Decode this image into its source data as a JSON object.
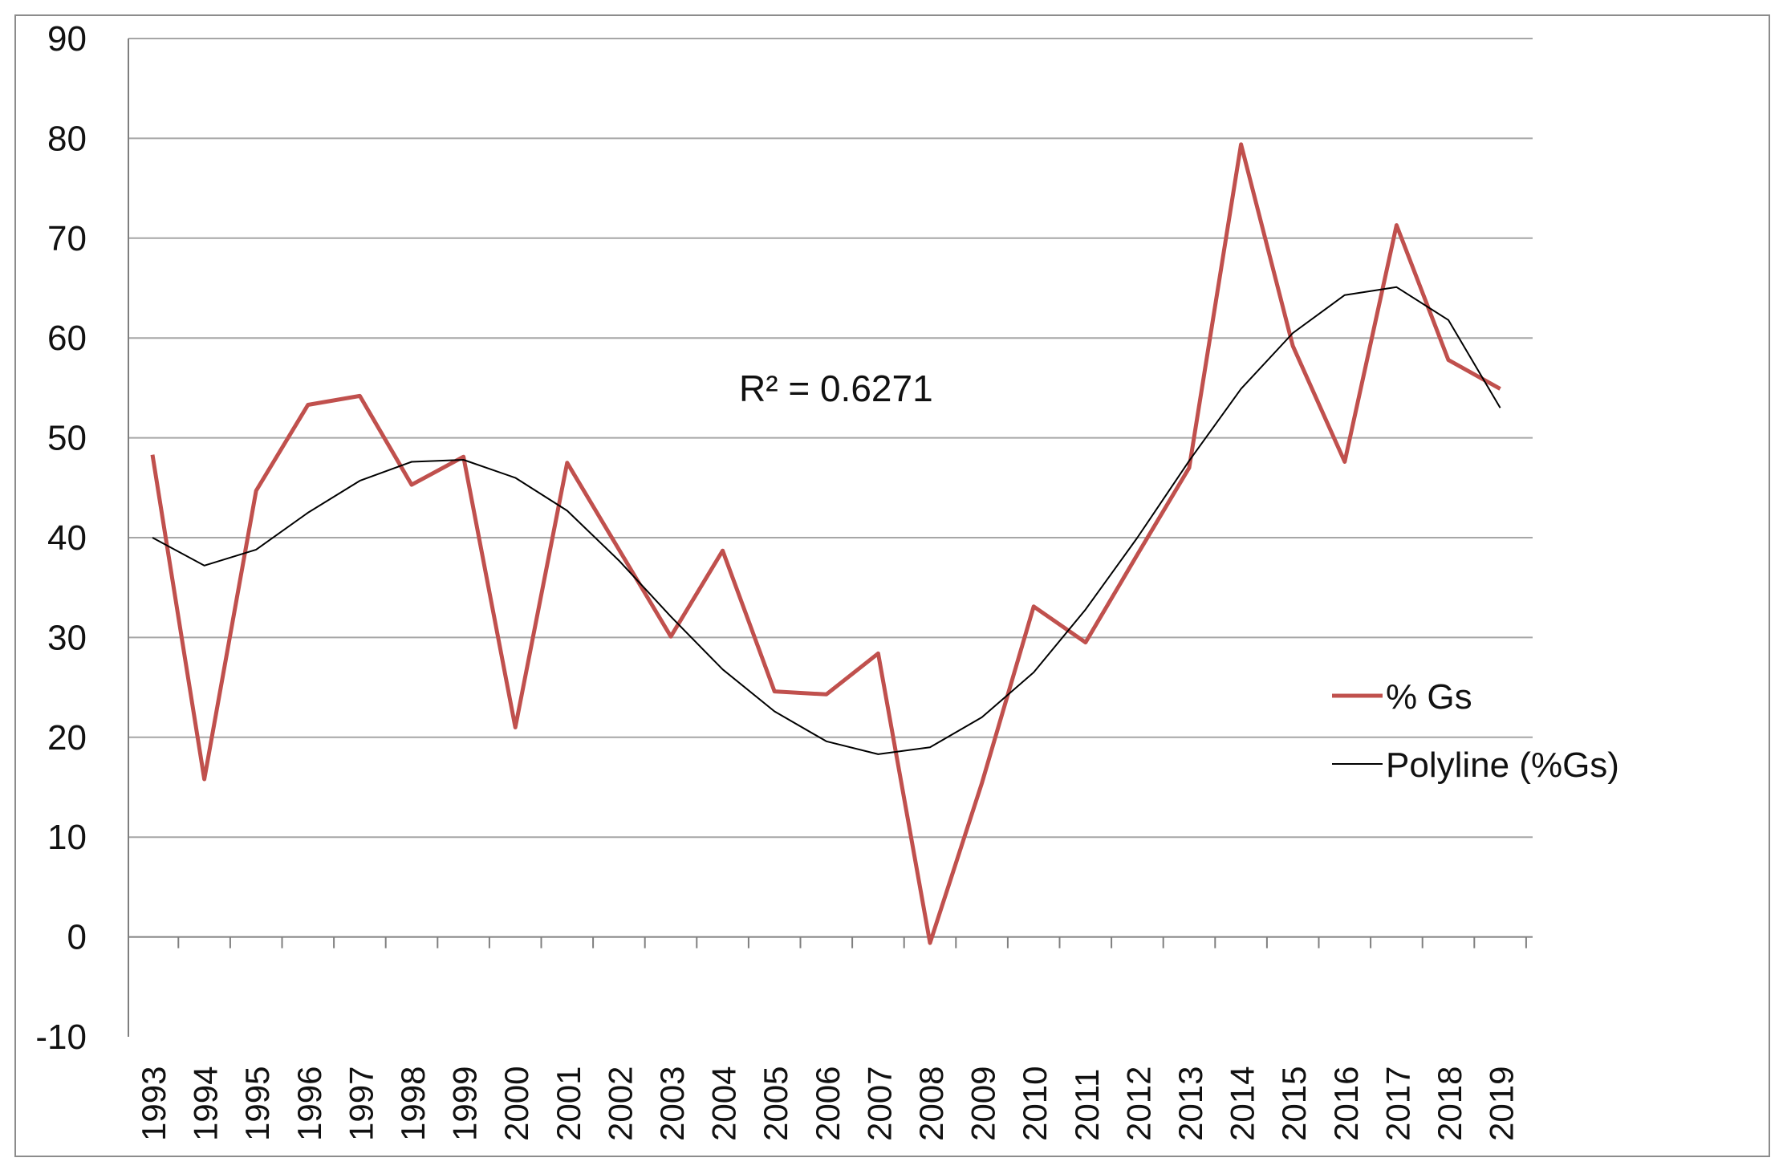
{
  "chart_data": {
    "type": "line",
    "title": "",
    "xlabel": "",
    "ylabel": "",
    "categories": [
      "1993",
      "1994",
      "1995",
      "1996",
      "1997",
      "1998",
      "1999",
      "2000",
      "2001",
      "2002",
      "2003",
      "2004",
      "2005",
      "2006",
      "2007",
      "2008",
      "2009",
      "2010",
      "2011",
      "2012",
      "2013",
      "2014",
      "2015",
      "2016",
      "2017",
      "2018",
      "2019"
    ],
    "ylim": [
      -10,
      90
    ],
    "yticks": [
      "90",
      "80",
      "70",
      "60",
      "50",
      "40",
      "30",
      "20",
      "10",
      "0",
      "-10"
    ],
    "grid": true,
    "legend_position": "right",
    "annotation": "R² = 0.6271",
    "series": [
      {
        "name": "% Gs",
        "color": "#c0504d",
        "values": [
          48.3,
          15.8,
          44.7,
          53.3,
          54.2,
          45.3,
          48.1,
          21.0,
          47.5,
          38.8,
          30.1,
          38.7,
          24.6,
          24.3,
          28.4,
          -0.6,
          15.4,
          33.1,
          29.5,
          38.3,
          47.0,
          79.4,
          59.2,
          47.6,
          71.3,
          57.8,
          54.9
        ]
      },
      {
        "name": "Polyline (%Gs)",
        "color": "#000000",
        "values": [
          40.0,
          37.2,
          38.8,
          42.5,
          45.7,
          47.6,
          47.8,
          46.0,
          42.7,
          37.7,
          32.1,
          26.8,
          22.6,
          19.6,
          18.3,
          19.0,
          22.0,
          26.5,
          32.8,
          40.0,
          47.7,
          54.9,
          60.5,
          64.3,
          65.1,
          61.8,
          53.0
        ]
      }
    ]
  }
}
